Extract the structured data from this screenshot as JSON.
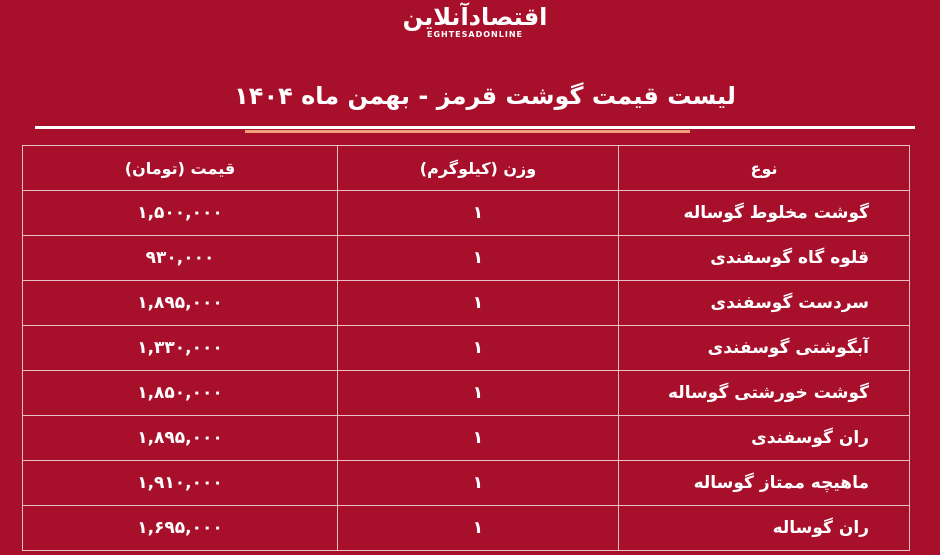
{
  "logo": {
    "fa": "اقتصادآنلاین",
    "en": "EGHTESADONLINE"
  },
  "title": "لیست قیمت گوشت قرمز - بهمن ماه ۱۴۰۴",
  "table": {
    "headers": [
      "نوع",
      "وزن (کیلوگرم)",
      "قیمت (تومان)"
    ],
    "rows": [
      {
        "name": "گوشت مخلوط گوساله",
        "weight": "۱",
        "price": "۱,۵۰۰,۰۰۰"
      },
      {
        "name": "قلوه گاه گوسفندی",
        "weight": "۱",
        "price": "۹۳۰,۰۰۰"
      },
      {
        "name": "سردست گوسفندی",
        "weight": "۱",
        "price": "۱,۸۹۵,۰۰۰"
      },
      {
        "name": "آبگوشتی گوسفندی",
        "weight": "۱",
        "price": "۱,۳۳۰,۰۰۰"
      },
      {
        "name": "گوشت خورشتی گوساله",
        "weight": "۱",
        "price": "۱,۸۵۰,۰۰۰"
      },
      {
        "name": "ران گوسفندی",
        "weight": "۱",
        "price": "۱,۸۹۵,۰۰۰"
      },
      {
        "name": "ماهیچه ممتاز گوساله",
        "weight": "۱",
        "price": "۱,۹۱۰,۰۰۰"
      },
      {
        "name": "ران گوساله",
        "weight": "۱",
        "price": "۱,۶۹۵,۰۰۰"
      }
    ]
  },
  "colors": {
    "background": "#a80f2b",
    "accent": "#f0a07a"
  }
}
